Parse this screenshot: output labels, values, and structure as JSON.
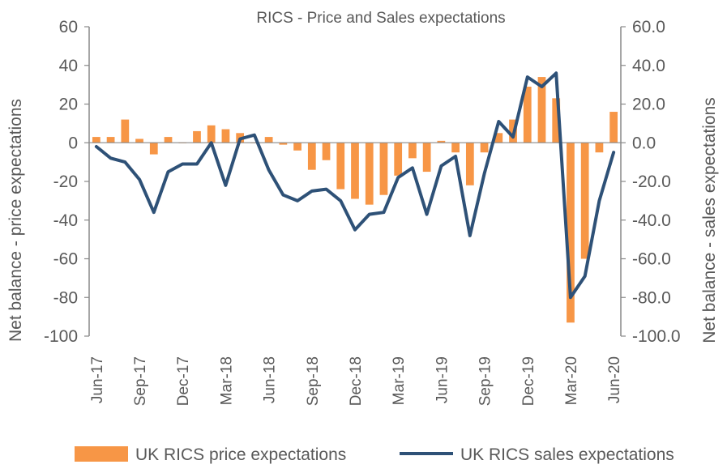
{
  "chart_data": {
    "type": "bar+line",
    "title": "RICS - Price and Sales expectations",
    "ylabel_left": "Net balance - price expectations",
    "ylabel_right": "Net balance - sales expectations",
    "ylim_left": [
      -100,
      60
    ],
    "ylim_right": [
      -100,
      60
    ],
    "yticks_left": [
      "60",
      "40",
      "20",
      "0",
      "-20",
      "-40",
      "-60",
      "-80",
      "-100"
    ],
    "yticks_right": [
      "60.0",
      "40.0",
      "20.0",
      "0.0",
      "-20.0",
      "-40.0",
      "-60.0",
      "-80.0",
      "-100.0"
    ],
    "categories": [
      "Jun-17",
      "Jul-17",
      "Aug-17",
      "Sep-17",
      "Oct-17",
      "Nov-17",
      "Dec-17",
      "Jan-18",
      "Feb-18",
      "Mar-18",
      "Apr-18",
      "May-18",
      "Jun-18",
      "Jul-18",
      "Aug-18",
      "Sep-18",
      "Oct-18",
      "Nov-18",
      "Dec-18",
      "Jan-19",
      "Feb-19",
      "Mar-19",
      "Apr-19",
      "May-19",
      "Jun-19",
      "Jul-19",
      "Aug-19",
      "Sep-19",
      "Oct-19",
      "Nov-19",
      "Dec-19",
      "Jan-20",
      "Feb-20",
      "Mar-20",
      "Apr-20",
      "May-20",
      "Jun-20"
    ],
    "x_tick_labels": [
      "Jun-17",
      "Sep-17",
      "Dec-17",
      "Mar-18",
      "Jun-18",
      "Sep-18",
      "Dec-18",
      "Mar-19",
      "Jun-19",
      "Sep-19",
      "Dec-19",
      "Mar-20",
      "Jun-20"
    ],
    "series": [
      {
        "name": "UK RICS price expectations",
        "type": "bar",
        "axis": "left",
        "color": "#F79646",
        "values": [
          3,
          3,
          12,
          2,
          -6,
          3,
          0,
          6,
          9,
          7,
          5,
          0,
          3,
          -1,
          -4,
          -14,
          -9,
          -24,
          -29,
          -32,
          -27,
          -17,
          -8,
          -15,
          1,
          -5,
          -22,
          -5,
          5,
          12,
          29,
          34,
          23,
          -93,
          -60,
          -5,
          16
        ]
      },
      {
        "name": "UK RICS sales expectations",
        "type": "line",
        "axis": "right",
        "color": "#2E5177",
        "values": [
          -2,
          -8,
          -10,
          -19,
          -36,
          -15,
          -11,
          -11,
          0,
          -22,
          2,
          4,
          -14,
          -27,
          -30,
          -25,
          -24,
          -30,
          -45,
          -37,
          -36,
          -18,
          -13,
          -37,
          -12,
          -7,
          -48,
          -16,
          11,
          3,
          34,
          29,
          36,
          -80,
          -69,
          -30,
          -5
        ]
      }
    ],
    "grid": false,
    "legend": "bottom"
  }
}
